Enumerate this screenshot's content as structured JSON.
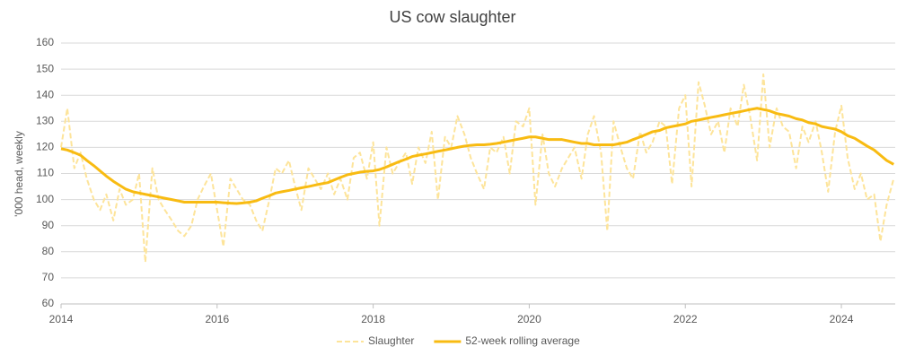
{
  "chart_data": {
    "type": "line",
    "title": "US cow slaughter",
    "y_label": "'000 head, weekly",
    "x": [
      2014,
      2014.08,
      2014.17,
      2014.25,
      2014.33,
      2014.42,
      2014.5,
      2014.58,
      2014.67,
      2014.75,
      2014.83,
      2014.92,
      2015,
      2015.08,
      2015.17,
      2015.25,
      2015.33,
      2015.42,
      2015.5,
      2015.58,
      2015.67,
      2015.75,
      2015.83,
      2015.92,
      2016,
      2016.08,
      2016.17,
      2016.25,
      2016.33,
      2016.42,
      2016.5,
      2016.58,
      2016.67,
      2016.75,
      2016.83,
      2016.92,
      2017,
      2017.08,
      2017.17,
      2017.25,
      2017.33,
      2017.42,
      2017.5,
      2017.58,
      2017.67,
      2017.75,
      2017.83,
      2017.92,
      2018,
      2018.08,
      2018.17,
      2018.25,
      2018.33,
      2018.42,
      2018.5,
      2018.58,
      2018.67,
      2018.75,
      2018.83,
      2018.92,
      2019,
      2019.08,
      2019.17,
      2019.25,
      2019.33,
      2019.42,
      2019.5,
      2019.58,
      2019.67,
      2019.75,
      2019.83,
      2019.92,
      2020,
      2020.08,
      2020.17,
      2020.25,
      2020.33,
      2020.42,
      2020.5,
      2020.58,
      2020.67,
      2020.75,
      2020.83,
      2020.92,
      2021,
      2021.08,
      2021.17,
      2021.25,
      2021.33,
      2021.42,
      2021.5,
      2021.58,
      2021.67,
      2021.75,
      2021.83,
      2021.92,
      2022,
      2022.08,
      2022.17,
      2022.25,
      2022.33,
      2022.42,
      2022.5,
      2022.58,
      2022.67,
      2022.75,
      2022.83,
      2022.92,
      2023,
      2023.08,
      2023.17,
      2023.25,
      2023.33,
      2023.42,
      2023.5,
      2023.58,
      2023.67,
      2023.75,
      2023.83,
      2023.92,
      2024,
      2024.08,
      2024.17,
      2024.25,
      2024.33,
      2024.42,
      2024.5,
      2024.58,
      2024.67
    ],
    "series": [
      {
        "name": "Slaughter",
        "color": "#fde49a",
        "dashed": true,
        "values": [
          120,
          135,
          112,
          118,
          108,
          100,
          96,
          102,
          92,
          104,
          98,
          100,
          110,
          76,
          112,
          100,
          96,
          92,
          88,
          86,
          90,
          100,
          105,
          110,
          96,
          82,
          108,
          104,
          100,
          98,
          92,
          88,
          100,
          112,
          110,
          115,
          105,
          96,
          112,
          108,
          104,
          110,
          102,
          108,
          100,
          116,
          118,
          108,
          122,
          90,
          120,
          110,
          114,
          118,
          106,
          120,
          114,
          126,
          100,
          124,
          120,
          132,
          125,
          116,
          110,
          104,
          120,
          118,
          124,
          110,
          130,
          128,
          135,
          98,
          125,
          110,
          105,
          112,
          116,
          120,
          108,
          125,
          132,
          118,
          88,
          130,
          120,
          112,
          108,
          126,
          118,
          122,
          130,
          128,
          106,
          135,
          140,
          105,
          145,
          136,
          125,
          130,
          118,
          135,
          128,
          144,
          132,
          115,
          148,
          120,
          135,
          128,
          126,
          112,
          128,
          122,
          130,
          118,
          103,
          126,
          136,
          116,
          104,
          110,
          100,
          102,
          84,
          98,
          108
        ]
      },
      {
        "name": "52-week rolling average",
        "color": "#f8bb12",
        "dashed": false,
        "values": [
          119.5,
          119,
          118,
          117,
          115,
          113,
          111,
          109,
          107,
          105.5,
          104,
          103,
          102.5,
          102,
          101.5,
          101,
          100.5,
          100,
          99.5,
          99,
          99,
          99,
          99,
          99,
          99,
          98.8,
          98.6,
          98.5,
          98.7,
          99,
          99.5,
          100.5,
          101.5,
          102.5,
          103,
          103.5,
          104,
          104.5,
          105,
          105.5,
          106,
          106.5,
          107.5,
          108.5,
          109.5,
          110,
          110.5,
          110.8,
          111,
          111.5,
          112.5,
          113.5,
          114.5,
          115.5,
          116.5,
          117,
          117.5,
          118,
          118.5,
          119,
          119.5,
          120,
          120.5,
          120.8,
          121,
          121,
          121.2,
          121.5,
          122,
          122.5,
          123,
          123.5,
          124,
          124,
          123.5,
          123,
          123,
          123,
          122.5,
          122,
          121.5,
          121.5,
          121,
          121,
          121,
          121,
          121.5,
          122,
          123,
          124,
          125,
          126,
          126.5,
          127.5,
          128,
          128.5,
          129,
          130,
          130.5,
          131,
          131.5,
          132,
          132.5,
          133,
          133.5,
          134,
          134.5,
          135,
          134.5,
          134,
          133,
          132.5,
          132,
          131,
          130.5,
          129.5,
          129,
          128,
          127.5,
          127,
          126,
          124.5,
          123.5,
          122,
          120.5,
          119,
          117,
          115,
          113.5
        ]
      }
    ],
    "xlim": [
      2014,
      2024.69
    ],
    "xticks": [
      2014,
      2016,
      2018,
      2020,
      2022,
      2024
    ],
    "ylim": [
      60,
      160
    ],
    "yticks": [
      60,
      70,
      80,
      90,
      100,
      110,
      120,
      130,
      140,
      150,
      160
    ],
    "grid": true,
    "legend": "bottom"
  }
}
